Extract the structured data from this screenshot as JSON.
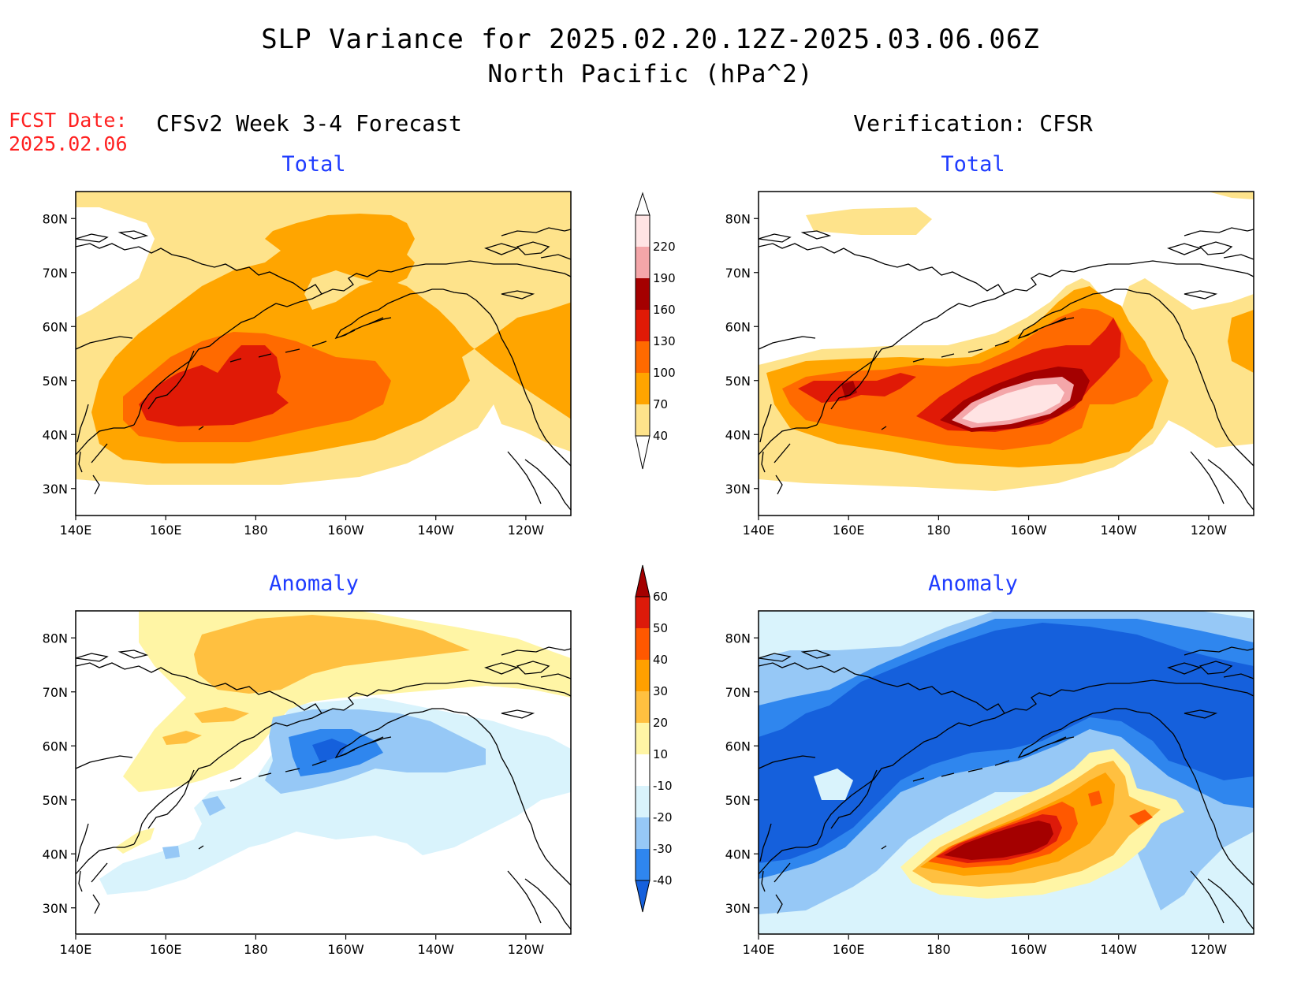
{
  "header": {
    "title_line1": "SLP Variance for 2025.02.20.12Z-2025.03.06.06Z",
    "title_line2": "North Pacific (hPa^2)"
  },
  "fcst": {
    "label": "FCST Date:",
    "date": "2025.02.06"
  },
  "columns": {
    "left": "CFSv2 Week 3-4 Forecast",
    "right": "Verification: CFSR"
  },
  "panel_titles": {
    "fcst_total": "Total",
    "verif_total": "Total",
    "fcst_anom": "Anomaly",
    "verif_anom": "Anomaly"
  },
  "axes": {
    "lon_labels": [
      "140E",
      "160E",
      "180",
      "160W",
      "140W",
      "120W"
    ],
    "lat_labels": [
      "80N",
      "70N",
      "60N",
      "50N",
      "40N",
      "30N"
    ]
  },
  "colorbars": {
    "total": {
      "labels": [
        "40",
        "70",
        "100",
        "130",
        "160",
        "190",
        "220"
      ],
      "colors": [
        "#fee38b",
        "#ffa500",
        "#ff6a00",
        "#e01a06",
        "#a40000",
        "#f4a6a9",
        "#ffe4e4"
      ]
    },
    "anomaly": {
      "labels": [
        "-40",
        "-30",
        "-20",
        "-10",
        "10",
        "20",
        "30",
        "40",
        "50",
        "60"
      ],
      "colors": [
        "#1560dc",
        "#2f86ee",
        "#96c8f6",
        "#d9f3fc",
        "#ffffff",
        "#fff5a5",
        "#ffc040",
        "#ffa000",
        "#ff5800",
        "#dd1a0a",
        "#a40000"
      ]
    }
  },
  "palette": {
    "title_blue": "#1f3cff",
    "fcst_red": "#ff2020"
  }
}
